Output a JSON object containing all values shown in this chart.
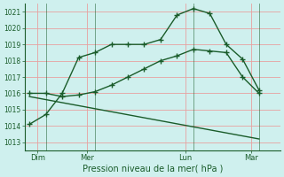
{
  "bg_color": "#cff0ee",
  "grid_color": "#e8a0a0",
  "line_color": "#1a5c2a",
  "title": "Pression niveau de la mer( hPa )",
  "ylim": [
    1012.5,
    1021.5
  ],
  "yticks": [
    1013,
    1014,
    1015,
    1016,
    1017,
    1018,
    1019,
    1020,
    1021
  ],
  "day_labels": [
    "Dim",
    "Mer",
    "Lun",
    "Mar"
  ],
  "day_positions": [
    0.5,
    3.5,
    9.5,
    13.5
  ],
  "vline_positions": [
    1,
    4,
    10,
    14
  ],
  "series1_x": [
    0,
    1,
    2,
    3,
    4,
    5,
    6,
    7,
    8,
    9,
    10,
    11,
    12,
    13,
    14
  ],
  "series1_y": [
    1014.1,
    1014.7,
    1016.0,
    1018.2,
    1018.5,
    1019.0,
    1019.0,
    1019.0,
    1019.3,
    1020.8,
    1021.2,
    1020.9,
    1019.0,
    1018.1,
    1016.2
  ],
  "series2_x": [
    0,
    1,
    2,
    3,
    4,
    5,
    6,
    7,
    8,
    9,
    10,
    11,
    12,
    13,
    14
  ],
  "series2_y": [
    1016.0,
    1016.0,
    1015.8,
    1015.9,
    1016.1,
    1016.5,
    1017.0,
    1017.5,
    1018.0,
    1018.3,
    1018.7,
    1018.6,
    1018.5,
    1017.0,
    1016.0
  ],
  "series3_x": [
    0,
    14
  ],
  "series3_y": [
    1015.8,
    1013.2
  ],
  "xlim": [
    -0.3,
    15.3
  ]
}
